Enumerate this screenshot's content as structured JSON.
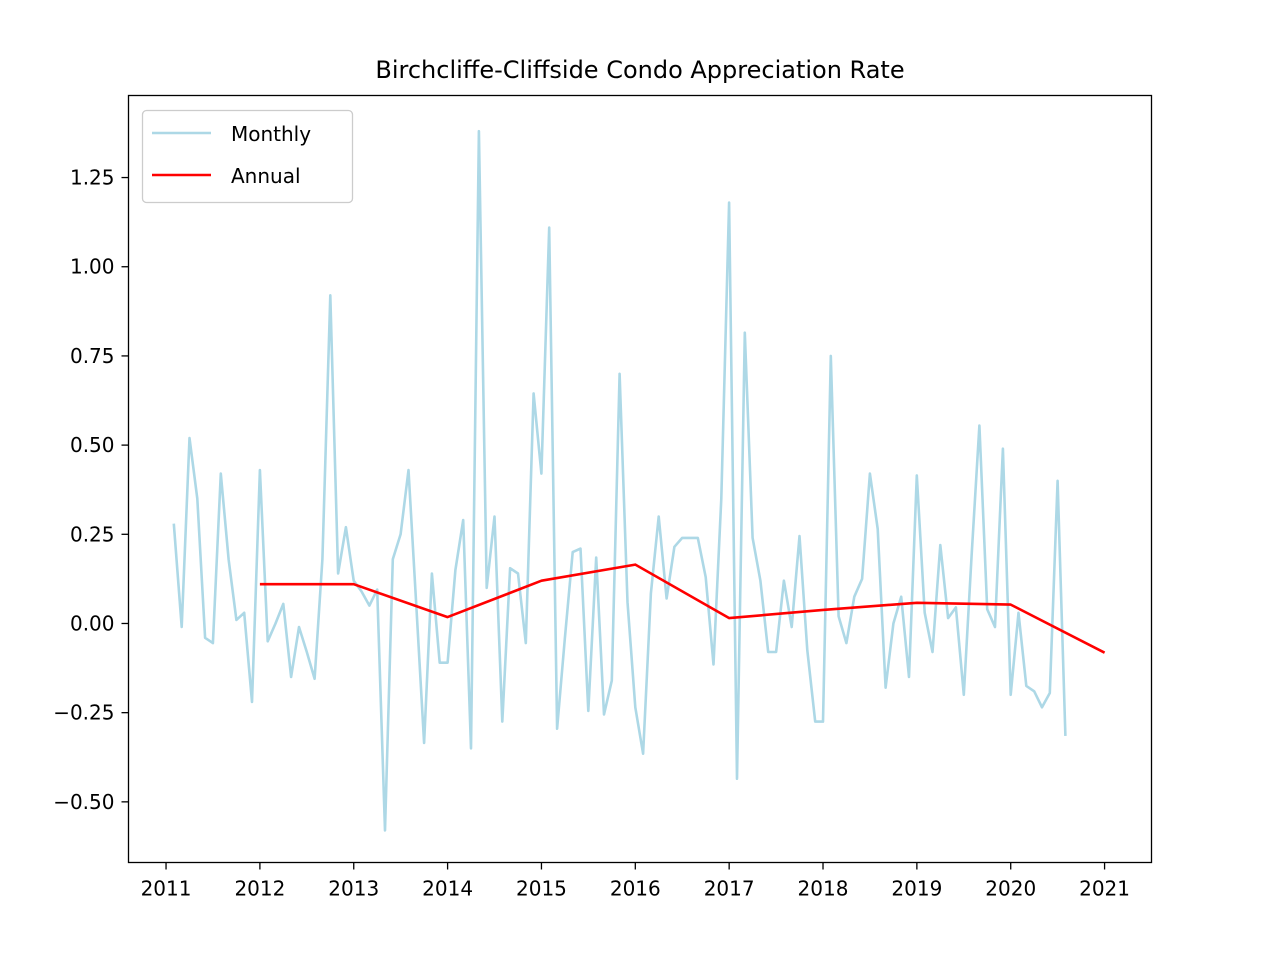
{
  "chart_data": {
    "type": "line",
    "title": "Birchcliffe-Cliffside Condo Appreciation Rate",
    "xlabel": "",
    "ylabel": "",
    "xlim": [
      2010.6,
      2021.5
    ],
    "ylim": [
      -0.67,
      1.48
    ],
    "xticks": [
      2011,
      2012,
      2013,
      2014,
      2015,
      2016,
      2017,
      2018,
      2019,
      2020,
      2021
    ],
    "xtick_labels": [
      "2011",
      "2012",
      "2013",
      "2014",
      "2015",
      "2016",
      "2017",
      "2018",
      "2019",
      "2020",
      "2021"
    ],
    "yticks": [
      -0.5,
      -0.25,
      0.0,
      0.25,
      0.5,
      0.75,
      1.0,
      1.25
    ],
    "ytick_labels": [
      "−0.50",
      "−0.25",
      "0.00",
      "0.25",
      "0.50",
      "0.75",
      "1.00",
      "1.25"
    ],
    "grid": false,
    "legend_position": "top-left",
    "series": [
      {
        "name": "Monthly",
        "color": "#add8e6",
        "x_start": 2011.083,
        "x_step": 0.0833333,
        "values": [
          0.28,
          -0.01,
          0.52,
          0.35,
          -0.04,
          -0.055,
          0.42,
          0.18,
          0.01,
          0.03,
          -0.22,
          0.43,
          -0.05,
          0.0,
          0.055,
          -0.15,
          -0.01,
          -0.08,
          -0.155,
          0.18,
          0.92,
          0.14,
          0.27,
          0.12,
          0.09,
          0.05,
          0.095,
          -0.58,
          0.18,
          0.25,
          0.43,
          0.05,
          -0.335,
          0.14,
          -0.11,
          -0.11,
          0.15,
          0.29,
          -0.35,
          1.38,
          0.1,
          0.3,
          -0.275,
          0.155,
          0.14,
          -0.055,
          0.645,
          0.42,
          1.11,
          -0.295,
          -0.04,
          0.2,
          0.21,
          -0.245,
          0.185,
          -0.255,
          -0.16,
          0.7,
          0.06,
          -0.235,
          -0.365,
          0.085,
          0.3,
          0.07,
          0.215,
          0.24,
          0.24,
          0.24,
          0.13,
          -0.115,
          0.35,
          1.18,
          -0.435,
          0.815,
          0.24,
          0.12,
          -0.08,
          -0.08,
          0.12,
          -0.01,
          0.245,
          -0.075,
          -0.275,
          -0.275,
          0.75,
          0.02,
          -0.055,
          0.075,
          0.125,
          0.42,
          0.265,
          -0.18,
          0.0,
          0.075,
          -0.15,
          0.415,
          0.03,
          -0.08,
          0.22,
          0.015,
          0.045,
          -0.2,
          0.19,
          0.555,
          0.04,
          -0.01,
          0.49,
          -0.2,
          0.03,
          -0.175,
          -0.19,
          -0.235,
          -0.195,
          0.4,
          -0.315
        ]
      },
      {
        "name": "Annual",
        "color": "#ff0000",
        "x": [
          2012,
          2013,
          2014,
          2015,
          2016,
          2017,
          2018,
          2019,
          2020,
          2021
        ],
        "values": [
          0.11,
          0.11,
          0.018,
          0.12,
          0.165,
          0.015,
          0.038,
          0.058,
          0.053,
          -0.082
        ]
      }
    ]
  }
}
